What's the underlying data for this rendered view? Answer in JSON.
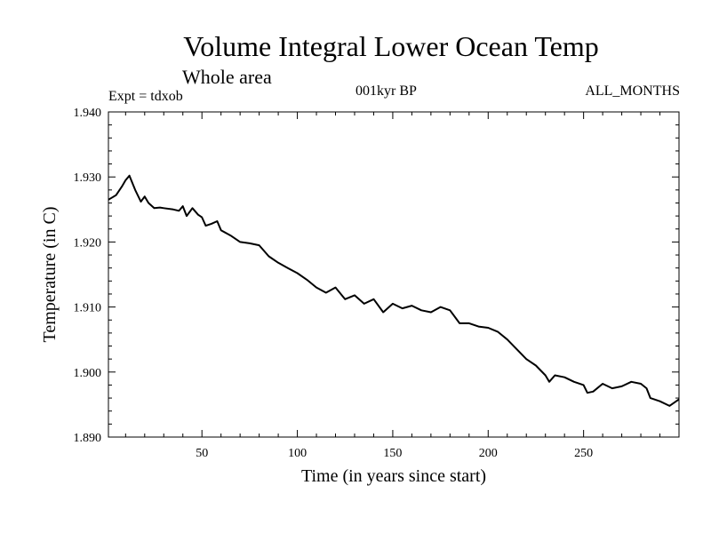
{
  "header": {
    "title": "Volume Integral Lower Ocean Temp",
    "subtitle": "Whole area",
    "experiment": "Expt = tdxob",
    "period": "001kyr BP",
    "months": "ALL_MONTHS"
  },
  "chart_data": {
    "type": "line",
    "title": "Volume Integral Lower Ocean Temp",
    "subtitle": "Whole area",
    "xlabel": "Time (in years since start)",
    "ylabel": "Temperature (in C)",
    "xlim": [
      1,
      300
    ],
    "ylim": [
      1.89,
      1.94
    ],
    "xticks": [
      50,
      100,
      150,
      200,
      250
    ],
    "xtick_labels": [
      "50",
      "100",
      "150",
      "200",
      "250"
    ],
    "yticks": [
      1.89,
      1.9,
      1.91,
      1.92,
      1.93,
      1.94
    ],
    "ytick_labels": [
      "1.890",
      "1.900",
      "1.910",
      "1.920",
      "1.930",
      "1.940"
    ],
    "grid": false,
    "legend": "none",
    "line_color": "#000000",
    "series": [
      {
        "x": [
          1,
          5,
          8,
          10,
          12,
          15,
          18,
          20,
          22,
          25,
          28,
          30,
          35,
          38,
          40,
          42,
          45,
          48,
          50,
          52,
          55,
          58,
          60,
          65,
          70,
          75,
          80,
          85,
          90,
          95,
          100,
          105,
          110,
          115,
          120,
          125,
          130,
          135,
          140,
          145,
          150,
          155,
          160,
          165,
          170,
          175,
          180,
          185,
          190,
          195,
          200,
          205,
          210,
          215,
          220,
          225,
          230,
          232,
          235,
          240,
          245,
          250,
          252,
          255,
          260,
          265,
          270,
          275,
          280,
          283,
          285,
          290,
          295,
          300
        ],
        "y": [
          1.9265,
          1.9272,
          1.9285,
          1.9295,
          1.9302,
          1.928,
          1.9262,
          1.927,
          1.926,
          1.9252,
          1.9253,
          1.9252,
          1.925,
          1.9248,
          1.9255,
          1.924,
          1.9252,
          1.9242,
          1.9238,
          1.9225,
          1.9228,
          1.9232,
          1.9218,
          1.921,
          1.92,
          1.9198,
          1.9195,
          1.9178,
          1.9168,
          1.916,
          1.9152,
          1.9142,
          1.913,
          1.9122,
          1.913,
          1.9112,
          1.9118,
          1.9105,
          1.9112,
          1.9092,
          1.9105,
          1.9098,
          1.9102,
          1.9095,
          1.9092,
          1.91,
          1.9095,
          1.9075,
          1.9075,
          1.907,
          1.9068,
          1.9062,
          1.905,
          1.9035,
          1.902,
          1.901,
          1.8995,
          1.8985,
          1.8995,
          1.8992,
          1.8985,
          1.898,
          1.8968,
          1.897,
          1.8982,
          1.8975,
          1.8978,
          1.8985,
          1.8982,
          1.8975,
          1.896,
          1.8955,
          1.8948,
          1.8958
        ]
      }
    ]
  }
}
